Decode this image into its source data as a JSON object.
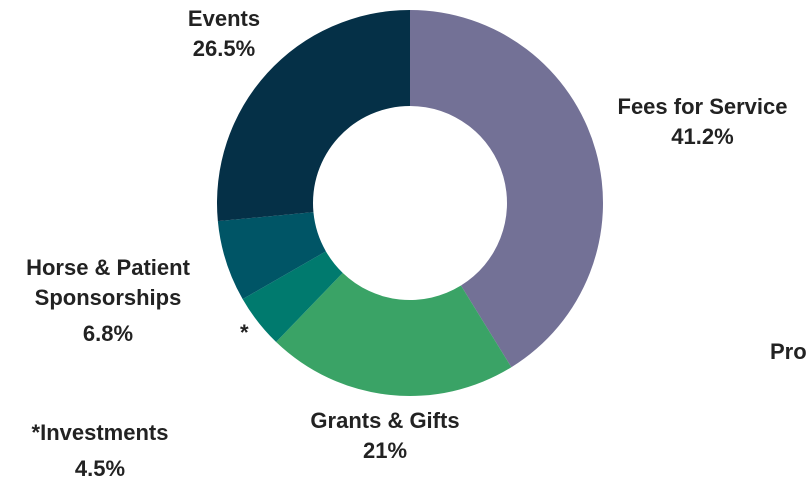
{
  "chart_data": {
    "type": "donut",
    "categories": [
      "Fees for Service",
      "Grants & Gifts",
      "*Investments",
      "Horse & Patient Sponsorships",
      "Events"
    ],
    "values": [
      41.2,
      21,
      4.5,
      6.8,
      26.5
    ],
    "value_labels": [
      "41.2%",
      "21%",
      "4.5%",
      "6.8%",
      "26.5%"
    ],
    "colors": [
      "#737196",
      "#3aa366",
      "#007a6e",
      "#005566",
      "#053047"
    ],
    "annotations": [
      {
        "text": "*"
      },
      {
        "text": "Pro"
      }
    ]
  }
}
